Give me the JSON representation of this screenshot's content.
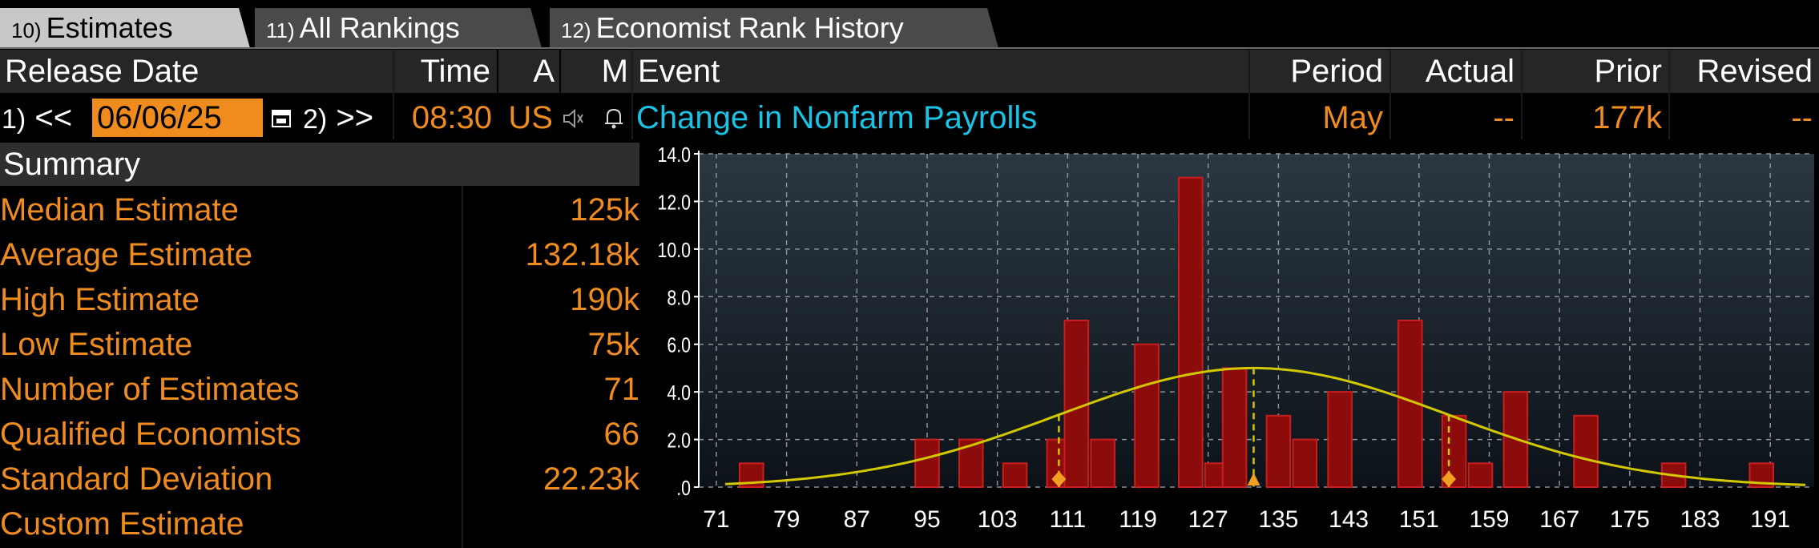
{
  "tabs": [
    {
      "num": "10)",
      "label": "Estimates",
      "active": true
    },
    {
      "num": "11)",
      "label": "All Rankings",
      "active": false
    },
    {
      "num": "12)",
      "label": "Economist Rank History",
      "active": false
    }
  ],
  "header": {
    "release_date": "Release Date",
    "time": "Time",
    "a": "A",
    "m": "M",
    "event": "Event",
    "period": "Period",
    "actual": "Actual",
    "prior": "Prior",
    "revised": "Revised"
  },
  "event_row": {
    "prev_num": "1)",
    "prev_label": "<<",
    "date": "06/06/25",
    "next_num": "2)",
    "next_label": ">>",
    "time": "08:30",
    "country": "US",
    "event": "Change in Nonfarm Payrolls",
    "period": "May",
    "actual": "--",
    "prior": "177k",
    "revised": "--"
  },
  "summary": {
    "title": "Summary",
    "rows": [
      {
        "label": "Median Estimate",
        "value": "125k"
      },
      {
        "label": "Average Estimate",
        "value": "132.18k"
      },
      {
        "label": "High Estimate",
        "value": "190k"
      },
      {
        "label": "Low Estimate",
        "value": "75k"
      },
      {
        "label": "Number of Estimates",
        "value": "71"
      },
      {
        "label": "Qualified Economists",
        "value": "66"
      },
      {
        "label": "Standard Deviation",
        "value": "22.23k"
      },
      {
        "label": "Custom Estimate",
        "value": ""
      }
    ]
  },
  "colors": {
    "accent": "#f08c1e",
    "event_link": "#19c3e6",
    "bar_fill": "#8c0c0c",
    "bar_edge": "#c81e1e",
    "curve": "#d2c800"
  },
  "chart_data": {
    "type": "bar",
    "ylim": [
      0,
      14
    ],
    "y_ticks": [
      "14.0",
      "12.0",
      "10.0",
      "8.0",
      "6.0",
      "4.0",
      "2.0",
      ".0"
    ],
    "x_ticks": [
      "71",
      "79",
      "87",
      "95",
      "103",
      "111",
      "119",
      "127",
      "135",
      "143",
      "151",
      "159",
      "167",
      "175",
      "183",
      "191"
    ],
    "xlim": [
      69,
      196
    ],
    "bins": [
      {
        "x": 75,
        "value": 1
      },
      {
        "x": 95,
        "value": 2
      },
      {
        "x": 100,
        "value": 2
      },
      {
        "x": 105,
        "value": 1
      },
      {
        "x": 110,
        "value": 2
      },
      {
        "x": 112,
        "value": 7
      },
      {
        "x": 115,
        "value": 2
      },
      {
        "x": 120,
        "value": 6
      },
      {
        "x": 125,
        "value": 13
      },
      {
        "x": 128,
        "value": 1
      },
      {
        "x": 130,
        "value": 5
      },
      {
        "x": 135,
        "value": 3
      },
      {
        "x": 138,
        "value": 2
      },
      {
        "x": 142,
        "value": 4
      },
      {
        "x": 150,
        "value": 7
      },
      {
        "x": 155,
        "value": 3
      },
      {
        "x": 158,
        "value": 1
      },
      {
        "x": 162,
        "value": 4
      },
      {
        "x": 170,
        "value": 3
      },
      {
        "x": 180,
        "value": 1
      },
      {
        "x": 190,
        "value": 1
      }
    ],
    "normal_curve": {
      "mean": 132.18,
      "sd": 22.23,
      "peak": 5
    },
    "markers": [
      110,
      132.18,
      154.4
    ],
    "grid": true
  }
}
